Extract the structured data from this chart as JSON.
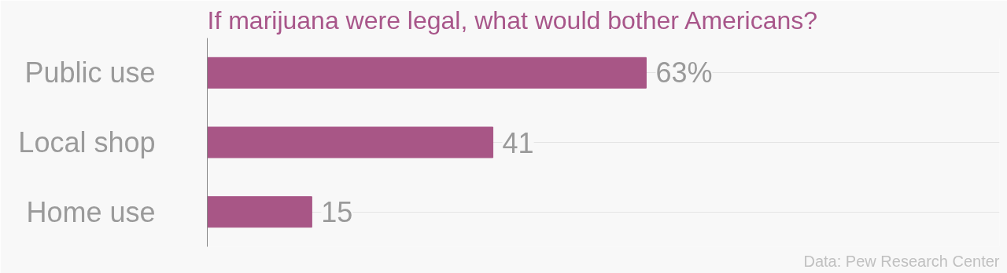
{
  "chart_data": {
    "type": "bar",
    "orientation": "horizontal",
    "title": "If marijuana were legal, what would bother Americans?",
    "categories": [
      "Public use",
      "Local shop",
      "Home use"
    ],
    "values": [
      63,
      41,
      15
    ],
    "value_labels": [
      "63%",
      "41",
      "15"
    ],
    "color": "#a85686",
    "grid": "y",
    "annotations": [
      "Data: Pew Research Center"
    ]
  }
}
